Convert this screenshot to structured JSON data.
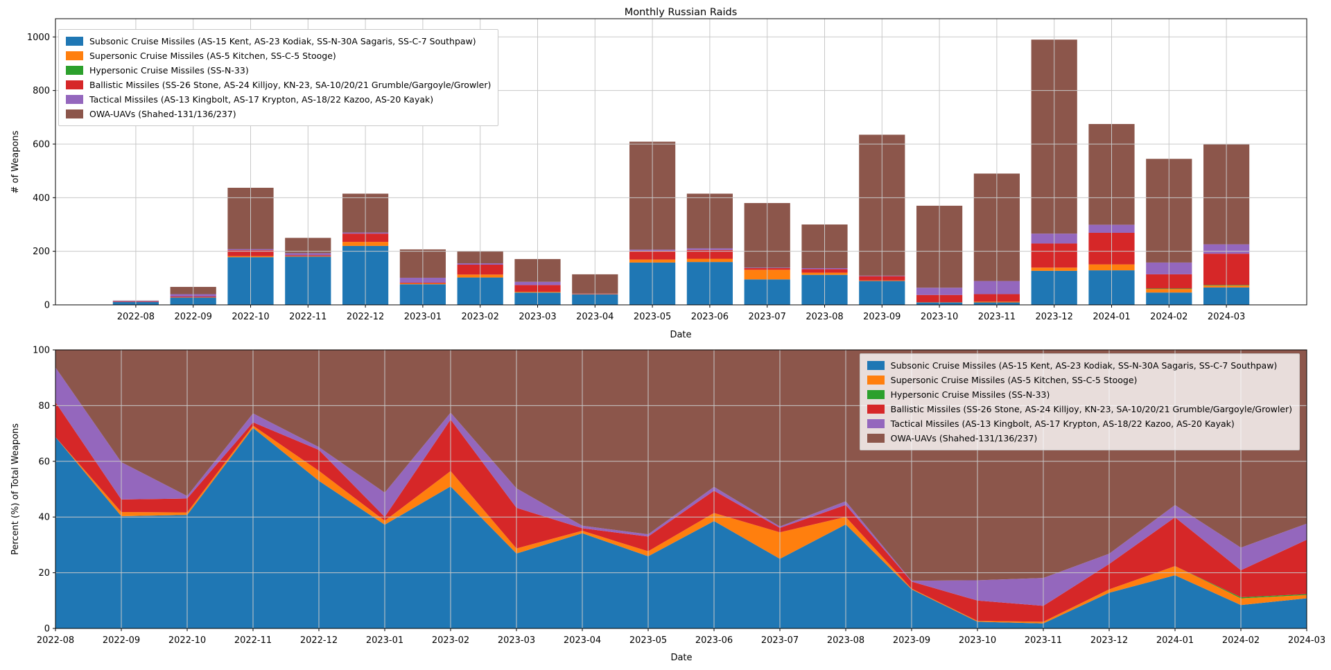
{
  "figure": {
    "background": "#ffffff"
  },
  "top_chart": {
    "title": "Monthly Russian Raids",
    "xlabel": "Date",
    "ylabel": "# of Weapons"
  },
  "bottom_chart": {
    "xlabel": "Date",
    "ylabel": "Percent (%) of Total Weapons"
  },
  "grid_color": "#c8c8c8",
  "chart_data": [
    {
      "type": "bar",
      "stacked": true,
      "title": "Monthly Russian Raids",
      "xlabel": "Date",
      "ylabel": "# of Weapons",
      "ylim": [
        0,
        1068
      ],
      "yticks": [
        0,
        200,
        400,
        600,
        800,
        1000
      ],
      "grid": true,
      "legend_position": "upper left",
      "categories": [
        "2022-08",
        "2022-09",
        "2022-10",
        "2022-11",
        "2022-12",
        "2023-01",
        "2023-02",
        "2023-03",
        "2023-04",
        "2023-05",
        "2023-06",
        "2023-07",
        "2023-08",
        "2023-09",
        "2023-10",
        "2023-11",
        "2023-12",
        "2024-01",
        "2024-02",
        "2024-03"
      ],
      "series": [
        {
          "key": "subsonic",
          "name": "Subsonic Cruise Missiles (AS-15 Kent, AS-23 Kodiak, SS-N-30A Sagaris, SS-C-7 Southpaw)",
          "color": "#1f77b4",
          "values": [
            11,
            27,
            178,
            180,
            220,
            77,
            102,
            46,
            39,
            158,
            160,
            95,
            112,
            89,
            9,
            9,
            127,
            129,
            46,
            65
          ]
        },
        {
          "key": "supersonic",
          "name": "Supersonic Cruise Missiles (AS-5 Kitchen, SS-C-5 Stooge)",
          "color": "#ff7f0e",
          "values": [
            0,
            1,
            4,
            2,
            15,
            3,
            11,
            3,
            1,
            11,
            12,
            36,
            8,
            2,
            1,
            3,
            12,
            22,
            13,
            7
          ]
        },
        {
          "key": "hypersonic",
          "name": "Hypersonic Cruise Missiles (SS-N-33)",
          "color": "#2ca02c",
          "values": [
            0,
            0,
            0,
            0,
            0,
            0,
            0,
            0,
            0,
            0,
            0,
            0,
            0,
            0,
            0,
            0,
            0,
            0,
            2,
            2
          ]
        },
        {
          "key": "ballistic",
          "name": "Ballistic Missiles (SS-26 Stone, AS-24 Killjoy, KN-23, SA-10/20/21 Grumble/Gargoyle/Growler)",
          "color": "#d62728",
          "values": [
            2,
            3,
            22,
            3,
            31,
            3,
            37,
            25,
            1,
            32,
            33,
            6,
            13,
            16,
            27,
            28,
            90,
            118,
            53,
            117
          ]
        },
        {
          "key": "tactical",
          "name": "Tactical Missiles (AS-13 Kingbolt, AS-17 Krypton, AS-18/22 Kazoo, AS-20 Kayak)",
          "color": "#9467bd",
          "values": [
            2,
            9,
            4,
            8,
            4,
            18,
            5,
            12,
            1,
            5,
            6,
            2,
            4,
            2,
            27,
            49,
            37,
            30,
            44,
            35
          ]
        },
        {
          "key": "owa_uav",
          "name": "OWA-UAVs (Shahed-131/136/237)",
          "color": "#8c564b",
          "values": [
            1,
            27,
            229,
            57,
            145,
            106,
            45,
            85,
            72,
            403,
            204,
            241,
            163,
            526,
            306,
            401,
            724,
            376,
            387,
            374
          ]
        }
      ],
      "monthly_totals": [
        16,
        67,
        437,
        250,
        415,
        207,
        200,
        171,
        114,
        609,
        415,
        380,
        300,
        635,
        370,
        490,
        990,
        675,
        545,
        600
      ]
    },
    {
      "type": "area",
      "stacked": true,
      "normalized_percent": true,
      "title": "",
      "xlabel": "Date",
      "ylabel": "Percent (%) of Total Weapons",
      "ylim": [
        0,
        100
      ],
      "yticks": [
        0,
        20,
        40,
        60,
        80,
        100
      ],
      "grid": true,
      "legend_position": "upper right",
      "categories": [
        "2022-08",
        "2022-09",
        "2022-10",
        "2022-11",
        "2022-12",
        "2023-01",
        "2023-02",
        "2023-03",
        "2023-04",
        "2023-05",
        "2023-06",
        "2023-07",
        "2023-08",
        "2023-09",
        "2023-10",
        "2023-11",
        "2023-12",
        "2024-01",
        "2024-02",
        "2024-03"
      ],
      "series": [
        {
          "key": "subsonic",
          "name": "Subsonic Cruise Missiles (AS-15 Kent, AS-23 Kodiak, SS-N-30A Sagaris, SS-C-7 Southpaw)",
          "color": "#1f77b4",
          "values": [
            68.8,
            40.3,
            40.7,
            72.0,
            53.0,
            37.2,
            51.0,
            26.9,
            34.2,
            25.9,
            38.6,
            25.0,
            37.3,
            14.0,
            2.4,
            1.8,
            12.8,
            19.1,
            8.4,
            10.8
          ]
        },
        {
          "key": "supersonic",
          "name": "Supersonic Cruise Missiles (AS-5 Kitchen, SS-C-5 Stooge)",
          "color": "#ff7f0e",
          "values": [
            0,
            1.5,
            0.9,
            0.8,
            3.6,
            1.4,
            5.5,
            1.8,
            0.9,
            1.8,
            2.9,
            9.5,
            2.7,
            0.3,
            0.3,
            0.6,
            1.2,
            3.3,
            2.4,
            1.2
          ]
        },
        {
          "key": "hypersonic",
          "name": "Hypersonic Cruise Missiles (SS-N-33)",
          "color": "#2ca02c",
          "values": [
            0,
            0,
            0,
            0,
            0,
            0,
            0,
            0,
            0,
            0,
            0,
            0,
            0,
            0,
            0,
            0,
            0,
            0,
            0.4,
            0.3
          ]
        },
        {
          "key": "ballistic",
          "name": "Ballistic Missiles (SS-26 Stone, AS-24 Killjoy, KN-23, SA-10/20/21 Grumble/Gargoyle/Growler)",
          "color": "#d62728",
          "values": [
            12.5,
            4.5,
            5.0,
            1.2,
            7.5,
            1.4,
            18.5,
            14.6,
            0.9,
            5.3,
            8.0,
            1.6,
            4.3,
            2.5,
            7.3,
            5.7,
            9.1,
            17.5,
            9.7,
            19.5
          ]
        },
        {
          "key": "tactical",
          "name": "Tactical Missiles (AS-13 Kingbolt, AS-17 Krypton, AS-18/22 Kazoo, AS-20 Kayak)",
          "color": "#9467bd",
          "values": [
            12.5,
            13.4,
            0.9,
            3.2,
            1.0,
            8.7,
            2.5,
            7.0,
            0.9,
            0.8,
            1.4,
            0.5,
            1.3,
            0.3,
            7.3,
            10.0,
            3.7,
            4.4,
            8.1,
            5.8
          ]
        },
        {
          "key": "owa_uav",
          "name": "OWA-UAVs (Shahed-131/136/237)",
          "color": "#8c564b",
          "values": [
            6.3,
            40.3,
            52.4,
            22.8,
            34.9,
            51.2,
            22.5,
            49.7,
            63.2,
            66.2,
            49.2,
            63.4,
            54.3,
            82.8,
            82.7,
            81.8,
            73.1,
            55.7,
            71.0,
            62.3
          ]
        }
      ]
    }
  ]
}
